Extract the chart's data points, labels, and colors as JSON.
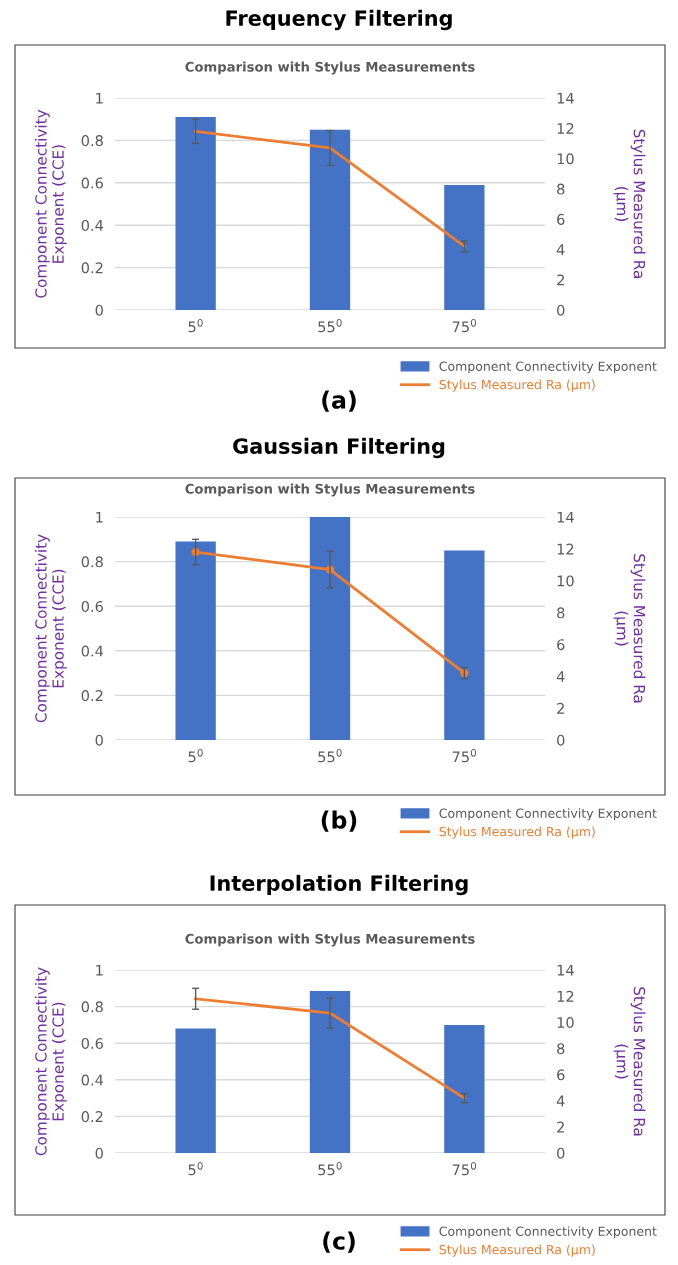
{
  "chart_data": [
    {
      "type": "bar",
      "title": "Frequency Filtering",
      "subtitle": "Comparison with Stylus Measurements",
      "ylabel": "Component Connectivity\nExponent (CCE)",
      "y2label": "Stylus Measured Ra\n(μm)",
      "categories": [
        "5$^{0}$",
        "55$^{0}$",
        "75$^{0}$"
      ],
      "series": [
        {
          "name": "Component Connectivity Exponent",
          "color": "#4472c4",
          "values": [
            0.91,
            0.85,
            0.59
          ]
        },
        {
          "name": "Stylus Measured Ra (μm)",
          "type": "line",
          "axis": "y2",
          "color": "#ed7d31",
          "values": [
            11.8,
            10.7,
            4.2
          ],
          "errors": [
            0.8,
            1.15,
            0.35
          ]
        }
      ],
      "ylim": [
        0,
        1
      ],
      "yticks": [
        0,
        0.2,
        0.4,
        0.6,
        0.8,
        1
      ],
      "y2lim": [
        0,
        14
      ],
      "y2ticks": [
        0,
        2,
        4,
        6,
        8,
        10,
        12,
        14
      ],
      "grid": "y",
      "legend": "bottom right",
      "annotations": [
        "(a)"
      ]
    },
    {
      "type": "bar",
      "title": "Gaussian Filtering",
      "subtitle": "Comparison with Stylus Measurements",
      "ylabel": "Component Connectivity\nExponent (CCE)",
      "y2label": "Stylus Measured Ra\n(μm)",
      "categories": [
        "5$^{0}$",
        "55$^{0}$",
        "75$^{0}$"
      ],
      "series": [
        {
          "name": "Component Connectivity Exponent",
          "color": "#4472c4",
          "values": [
            0.89,
            1.0,
            0.85
          ]
        },
        {
          "name": "Stylus Measured Ra (μm)",
          "type": "line",
          "axis": "y2",
          "color": "#ed7d31",
          "values": [
            11.8,
            10.7,
            4.2
          ],
          "errors": [
            0.8,
            1.15,
            0.35
          ],
          "marker": "circle"
        }
      ],
      "ylim": [
        0,
        1
      ],
      "yticks": [
        0,
        0.2,
        0.4,
        0.6,
        0.8,
        1
      ],
      "y2lim": [
        0,
        14
      ],
      "y2ticks": [
        0,
        2,
        4,
        6,
        8,
        10,
        12,
        14
      ],
      "grid": "y",
      "legend": "bottom right",
      "annotations": [
        "(b)"
      ]
    },
    {
      "type": "bar",
      "title": "Interpolation Filtering",
      "subtitle": "Comparison with Stylus Measurements",
      "ylabel": "Component Connectivity\nExponent (CCE)",
      "y2label": "Stylus Measured Ra\n(μm)",
      "categories": [
        "5$^{0}$",
        "55$^{0}$",
        "75$^{0}$"
      ],
      "series": [
        {
          "name": "Component Connectivity Exponent",
          "color": "#4472c4",
          "values": [
            0.68,
            0.885,
            0.7
          ]
        },
        {
          "name": "Stylus Measured Ra (μm)",
          "type": "line",
          "axis": "y2",
          "color": "#ed7d31",
          "values": [
            11.8,
            10.7,
            4.2
          ],
          "errors": [
            0.8,
            1.15,
            0.35
          ]
        }
      ],
      "ylim": [
        0,
        1
      ],
      "yticks": [
        0,
        0.2,
        0.4,
        0.6,
        0.8,
        1
      ],
      "y2lim": [
        0,
        14
      ],
      "y2ticks": [
        0,
        2,
        4,
        6,
        8,
        10,
        12,
        14
      ],
      "grid": "y",
      "legend": "bottom right",
      "annotations": [
        "(c)"
      ]
    }
  ]
}
